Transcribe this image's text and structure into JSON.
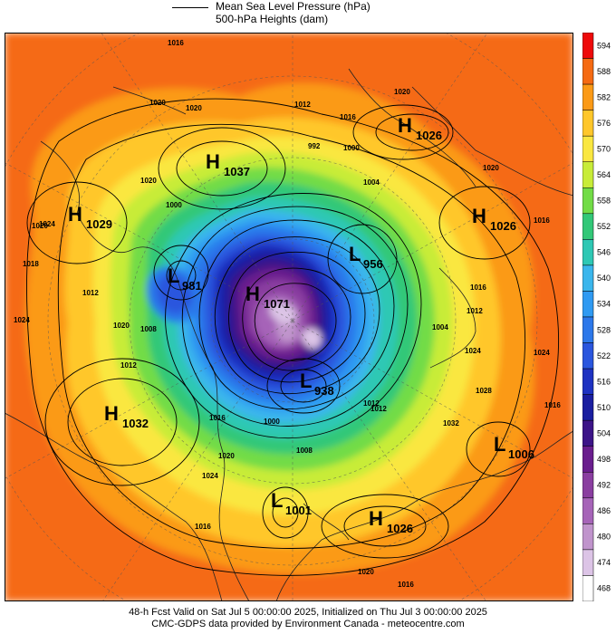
{
  "legend": {
    "mslp_label": "Mean Sea Level Pressure (hPa)",
    "heights_label": "500-hPa Heights (dam)"
  },
  "footer": {
    "line1": "48-h Fcst Valid on Sat Jul  5 00:00:00 2025, Initialized on Thu Jul  3 00:00:00 2025",
    "line2": "CMC-GDPS data provided by Environment Canada - meteocentre.com"
  },
  "colorbar": {
    "ticks": [
      "594",
      "588",
      "582",
      "576",
      "570",
      "564",
      "558",
      "552",
      "546",
      "540",
      "534",
      "528",
      "522",
      "516",
      "510",
      "504",
      "498",
      "492",
      "486",
      "480",
      "474",
      "468"
    ],
    "colors": [
      "#ee0a0a",
      "#f56a12",
      "#fb9a16",
      "#ffc72a",
      "#fae740",
      "#c8ec38",
      "#72dc46",
      "#32c878",
      "#2ec8b4",
      "#3ab6ec",
      "#2f9af2",
      "#2c78ea",
      "#2a56de",
      "#1e32c2",
      "#1a1ea0",
      "#3c1488",
      "#6a1e8e",
      "#8a3ea0",
      "#a664b8",
      "#c094cc",
      "#dcc4e6",
      "#ffffff"
    ]
  },
  "highs": [
    {
      "letter": "H",
      "value": "1026"
    },
    {
      "letter": "H",
      "value": "1037"
    },
    {
      "letter": "H",
      "value": "1029"
    },
    {
      "letter": "H",
      "value": "1026"
    },
    {
      "letter": "H",
      "value": "1071"
    },
    {
      "letter": "H",
      "value": "1032"
    },
    {
      "letter": "H",
      "value": "1026"
    }
  ],
  "lows": [
    {
      "letter": "L",
      "value": "956"
    },
    {
      "letter": "L",
      "value": "981"
    },
    {
      "letter": "L",
      "value": "938"
    },
    {
      "letter": "L",
      "value": "1006"
    },
    {
      "letter": "L",
      "value": "1001"
    }
  ],
  "isobar_labels": [
    "1016",
    "1020",
    "1020",
    "1020",
    "1012",
    "1016",
    "1020",
    "1020",
    "992",
    "1000",
    "1004",
    "1024",
    "1020",
    "1000",
    "1016",
    "1018",
    "1012",
    "1016",
    "1020",
    "1008",
    "1004",
    "1012",
    "1024",
    "1024",
    "1016",
    "1012",
    "1016",
    "1012",
    "1000",
    "1008",
    "1012",
    "1032",
    "1028",
    "1024",
    "1020",
    "1016",
    "1016",
    "1020",
    "1024"
  ]
}
